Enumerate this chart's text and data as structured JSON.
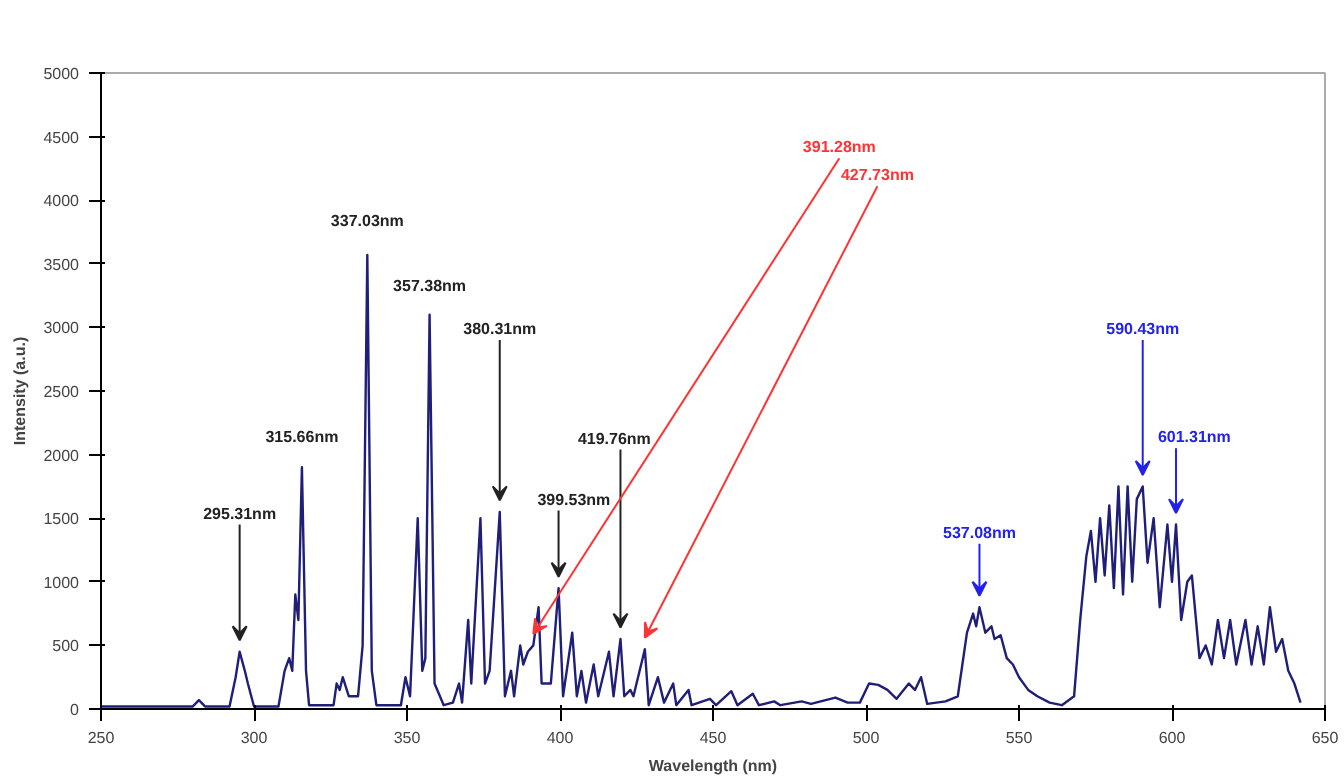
{
  "chart_data": {
    "type": "line",
    "xlabel": "Wavelength (nm)",
    "ylabel": "Intensity (a.u.)",
    "xlim": [
      250,
      650
    ],
    "xticks": [
      250,
      300,
      350,
      400,
      450,
      500,
      550,
      600,
      650
    ],
    "ylim": [
      0,
      5000
    ],
    "yticks": [
      0,
      500,
      1000,
      1500,
      2000,
      2500,
      3000,
      3500,
      4000,
      4500,
      5000
    ],
    "grid": false,
    "marker": "none",
    "line_style": "solid",
    "series": [
      {
        "color": "#1f1f7a",
        "x": [
          250,
          280,
          282,
          284,
          292,
          294,
          295.31,
          297,
          298,
          300,
          308,
          310,
          311.5,
          312.5,
          313.5,
          314.5,
          315.66,
          317,
          318,
          326,
          327,
          328,
          329,
          331,
          334,
          335.5,
          337.03,
          338.5,
          340,
          348,
          349.5,
          351,
          353.5,
          355,
          356,
          357.38,
          359,
          362,
          365,
          367,
          368,
          370,
          371,
          374,
          375.5,
          377,
          380.31,
          382,
          384,
          385,
          387,
          388,
          389.5,
          391.28,
          393,
          394,
          397,
          399.53,
          401,
          404,
          405.5,
          407,
          408.5,
          411,
          412.5,
          416,
          417.5,
          419.76,
          421,
          423,
          424,
          427.73,
          429,
          432,
          434,
          437,
          438,
          442,
          443,
          449,
          451,
          456,
          458,
          463,
          465,
          470,
          472,
          479,
          482,
          490,
          494,
          498,
          501,
          504,
          507,
          510,
          514,
          516,
          518,
          520,
          526,
          530,
          533,
          535,
          536,
          537.08,
          539,
          541,
          542,
          544,
          546,
          548,
          550,
          553,
          556,
          560,
          564,
          568,
          570,
          572,
          573.5,
          575,
          576.5,
          578,
          579.5,
          581,
          582.5,
          584,
          585.5,
          587,
          588.5,
          590.43,
          592,
          594,
          596,
          598.5,
          600,
          601.31,
          603,
          605,
          606.5,
          609,
          611,
          613,
          615,
          617,
          619,
          621,
          624,
          626,
          628,
          630,
          632,
          634,
          636,
          638,
          640,
          642
        ],
        "values": [
          20,
          20,
          70,
          20,
          20,
          250,
          450,
          300,
          200,
          20,
          20,
          300,
          400,
          300,
          900,
          700,
          1900,
          300,
          30,
          30,
          200,
          150,
          250,
          100,
          100,
          500,
          3570,
          300,
          30,
          30,
          250,
          100,
          1500,
          300,
          400,
          3100,
          200,
          30,
          50,
          200,
          50,
          700,
          200,
          1500,
          200,
          300,
          1550,
          100,
          300,
          100,
          500,
          350,
          450,
          500,
          800,
          200,
          200,
          950,
          100,
          600,
          100,
          300,
          50,
          350,
          100,
          450,
          100,
          550,
          100,
          150,
          100,
          470,
          30,
          250,
          50,
          200,
          30,
          150,
          30,
          80,
          30,
          140,
          30,
          120,
          30,
          60,
          30,
          60,
          40,
          90,
          50,
          50,
          200,
          190,
          150,
          80,
          200,
          150,
          250,
          40,
          60,
          100,
          600,
          750,
          650,
          800,
          600,
          650,
          550,
          580,
          400,
          350,
          250,
          150,
          100,
          50,
          30,
          100,
          700,
          1200,
          1400,
          1000,
          1500,
          1050,
          1600,
          950,
          1750,
          900,
          1750,
          1000,
          1650,
          1750,
          1150,
          1500,
          800,
          1450,
          1000,
          1450,
          700,
          1000,
          1050,
          400,
          500,
          350,
          700,
          400,
          700,
          350,
          700,
          350,
          650,
          350,
          800,
          450,
          550,
          300,
          200,
          50
        ]
      }
    ],
    "annotations": [
      {
        "text": "295.31nm",
        "x": 295.31,
        "y": 450
      },
      {
        "text": "315.66nm",
        "x": 315.66,
        "y": 1900
      },
      {
        "text": "337.03nm",
        "x": 337.03,
        "y": 3570
      },
      {
        "text": "357.38nm",
        "x": 357.38,
        "y": 3100
      },
      {
        "text": "380.31nm",
        "x": 380.31,
        "y": 1550
      },
      {
        "text": "399.53nm",
        "x": 399.53,
        "y": 950
      },
      {
        "text": "419.76nm",
        "x": 419.76,
        "y": 550
      },
      {
        "text": "391.28nm",
        "x": 391.28,
        "y": 500
      },
      {
        "text": "427.73nm",
        "x": 427.73,
        "y": 470
      },
      {
        "text": "537.08nm",
        "x": 537.08,
        "y": 800
      },
      {
        "text": "590.43nm",
        "x": 590.43,
        "y": 1750
      },
      {
        "text": "601.31nm",
        "x": 601.31,
        "y": 1450
      }
    ]
  }
}
